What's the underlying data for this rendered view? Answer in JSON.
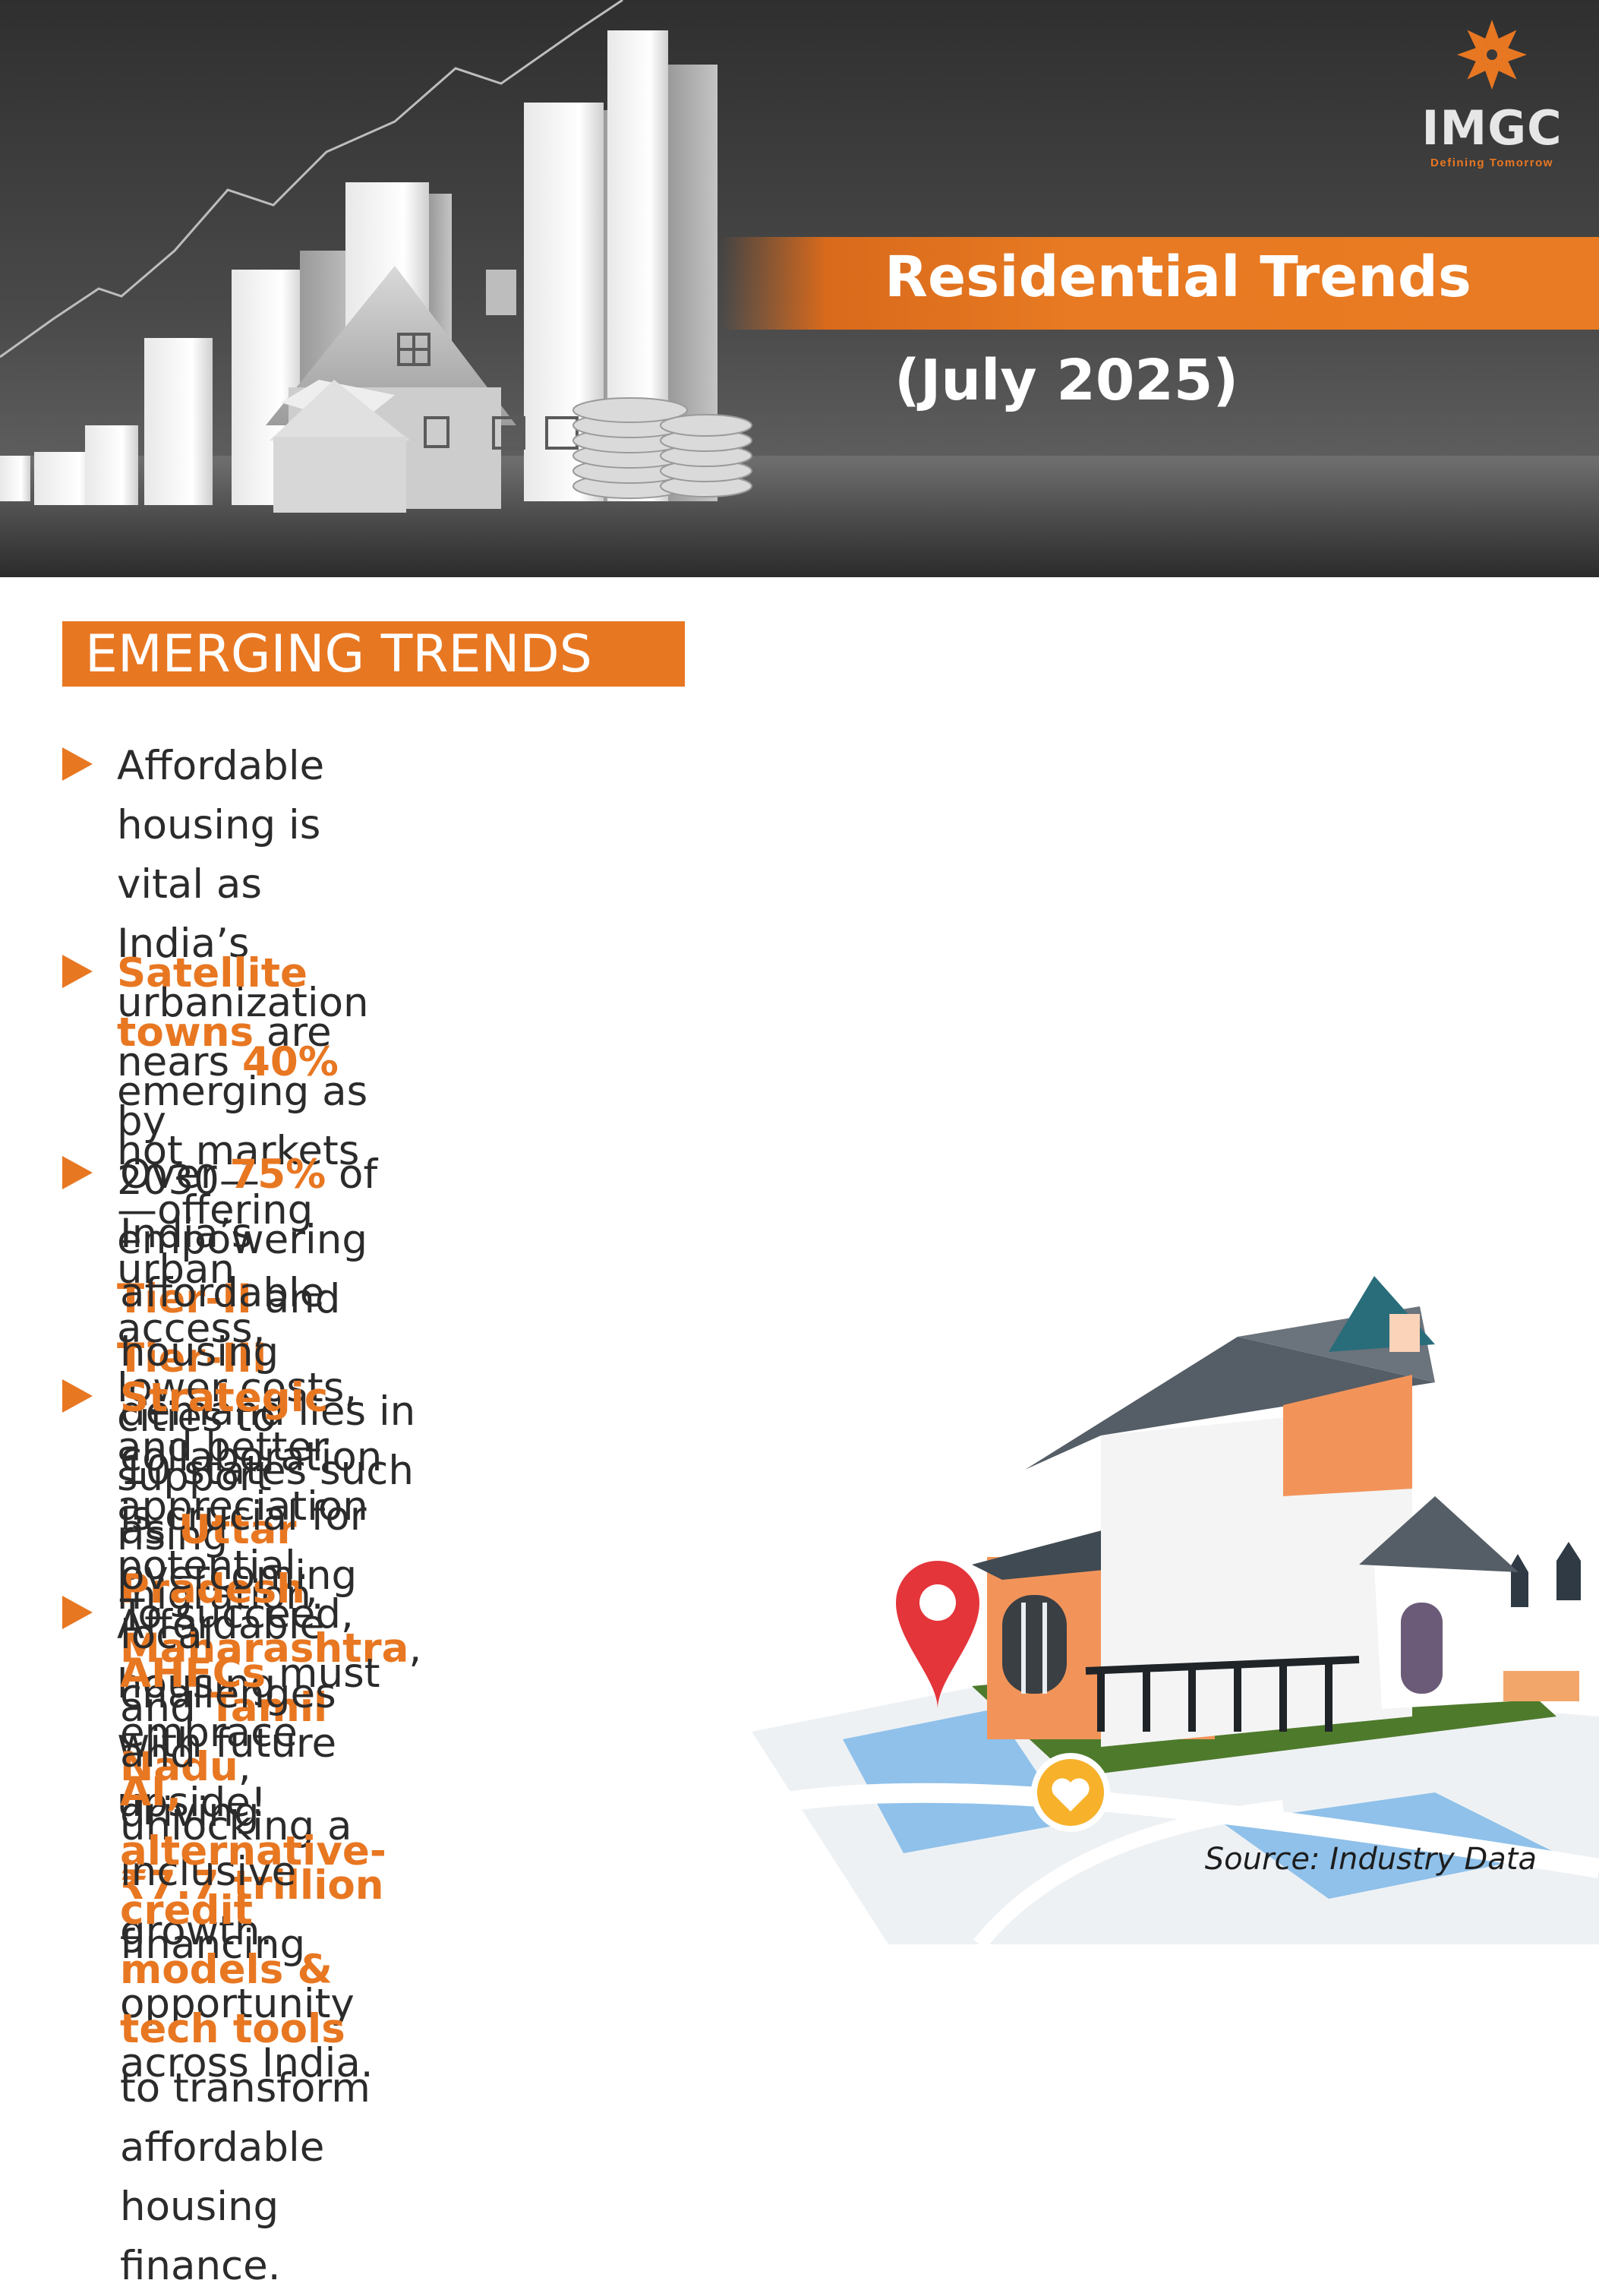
{
  "brand": {
    "name": "IMGC",
    "tagline": "Defining Tomorrow",
    "accent": "#e87722"
  },
  "header": {
    "title": "Residential Trends",
    "subtitle": "(July 2025)"
  },
  "section": {
    "title": "EMERGING TRENDS"
  },
  "bullets": [
    {
      "parts": [
        {
          "t": "Affordable housing is vital as India’s urbanization nears ",
          "h": false
        },
        {
          "t": "40%",
          "h": true
        },
        {
          "t": " by",
          "h": false
        },
        {
          "t": "\n2030—empowering ",
          "h": false
        },
        {
          "t": "Tier-II",
          "h": true
        },
        {
          "t": " and ",
          "h": false
        },
        {
          "t": "Tier-III",
          "h": true
        },
        {
          "t": " cities to support",
          "h": false
        },
        {
          "t": "\nrising migration.",
          "h": false
        }
      ]
    },
    {
      "parts": [
        {
          "t": "Satellite towns",
          "h": true
        },
        {
          "t": " are emerging as hot markets—offering urban access,",
          "h": false
        },
        {
          "t": "\nlower costs, and better appreciation potential. Affordable housing",
          "h": false
        },
        {
          "t": "\nwith future upside!",
          "h": false
        }
      ]
    },
    {
      "parts": [
        {
          "t": "Over ",
          "h": false
        },
        {
          "t": "75%",
          "h": true
        },
        {
          "t": " of India’s affordable housing demand lies in 10 states such",
          "h": false
        },
        {
          "t": "\nas ",
          "h": false
        },
        {
          "t": "Uttar Pradesh",
          "h": true
        },
        {
          "t": ", ",
          "h": false
        },
        {
          "t": "Maharashtra",
          "h": true
        },
        {
          "t": ", and ",
          "h": false
        },
        {
          "t": "Tamil Nadu",
          "h": true
        },
        {
          "t": ", unlocking a",
          "h": false
        },
        {
          "t": "\n",
          "h": false
        },
        {
          "t": "₹7.7 trillion",
          "h": true
        },
        {
          "t": " financing opportunity across India.",
          "h": false
        }
      ]
    },
    {
      "parts": [
        {
          "t": "Strategic",
          "h": true
        },
        {
          "t": " collaboration is crucial for",
          "h": false
        },
        {
          "t": "\novercoming local challenges and",
          "h": false
        },
        {
          "t": "\ndriving inclusive growth.",
          "h": false
        }
      ]
    },
    {
      "parts": [
        {
          "t": "To succeed, ",
          "h": false
        },
        {
          "t": "AHFCs",
          "h": true
        },
        {
          "t": " must embrace",
          "h": false
        },
        {
          "t": "\n",
          "h": false
        },
        {
          "t": "AI, alternative-credit models &",
          "h": true
        },
        {
          "t": "\n",
          "h": false
        },
        {
          "t": "tech tools",
          "h": true
        },
        {
          "t": " to transform",
          "h": false
        },
        {
          "t": "\naffordable housing finance.",
          "h": false
        }
      ]
    }
  ],
  "source": "Source: Industry Data"
}
